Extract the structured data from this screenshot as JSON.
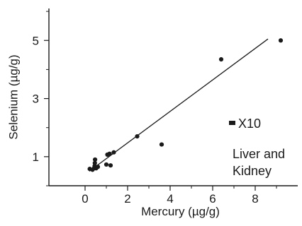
{
  "chart_data": {
    "type": "scatter",
    "xlabel": "Mercury (µg/g)",
    "ylabel": "Selenium (µg/g)",
    "xlim": [
      -1.7,
      10
    ],
    "ylim": [
      0,
      6.1
    ],
    "x_ticks": [
      "0",
      "2",
      "4",
      "6",
      "8"
    ],
    "x_tick_values": [
      0,
      2,
      4,
      6,
      8
    ],
    "y_ticks": [
      "1",
      "3",
      "5"
    ],
    "y_tick_values": [
      1,
      3,
      5
    ],
    "grid": false,
    "legend": "none",
    "points": [
      {
        "x": 0.22,
        "y": 0.58
      },
      {
        "x": 0.35,
        "y": 0.55
      },
      {
        "x": 0.42,
        "y": 0.6
      },
      {
        "x": 0.45,
        "y": 0.68
      },
      {
        "x": 0.46,
        "y": 0.78
      },
      {
        "x": 0.47,
        "y": 0.9
      },
      {
        "x": 0.52,
        "y": 0.6
      },
      {
        "x": 0.6,
        "y": 0.65
      },
      {
        "x": 1.0,
        "y": 0.73
      },
      {
        "x": 1.05,
        "y": 1.07
      },
      {
        "x": 1.15,
        "y": 1.1
      },
      {
        "x": 1.2,
        "y": 0.7
      },
      {
        "x": 1.35,
        "y": 1.15
      },
      {
        "x": 2.45,
        "y": 1.7
      },
      {
        "x": 3.6,
        "y": 1.42
      },
      {
        "x": 6.4,
        "y": 4.35
      },
      {
        "x": 9.2,
        "y": 5.0
      }
    ],
    "fit_line": {
      "x": [
        0.2,
        8.6
      ],
      "y": [
        0.5,
        5.05
      ]
    },
    "annotations": {
      "scale_marker": "X10",
      "group_label_line1": "Liver and",
      "group_label_line2": "Kidney"
    }
  }
}
